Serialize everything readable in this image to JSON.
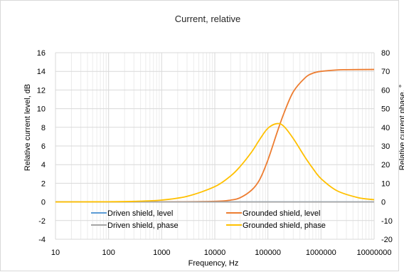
{
  "chart_data": {
    "type": "line",
    "title": "Current, relative",
    "xlabel": "Frequency, Hz",
    "ylabel": "Relative current level, dB",
    "y2label": "Relative current phase, °",
    "x_scale": "log",
    "xlim": [
      10,
      10000000
    ],
    "ylim": [
      -4,
      16
    ],
    "y2lim": [
      -20,
      80
    ],
    "x_ticks": [
      "10",
      "100",
      "1000",
      "10000",
      "100000",
      "1000000",
      "10000000"
    ],
    "y_ticks": [
      "-4",
      "-2",
      "0",
      "2",
      "4",
      "6",
      "8",
      "10",
      "12",
      "14",
      "16"
    ],
    "y2_ticks": [
      "-20",
      "-10",
      "0",
      "10",
      "20",
      "30",
      "40",
      "50",
      "60",
      "70",
      "80"
    ],
    "grid": true,
    "legend_position": "bottom-inside",
    "series": [
      {
        "name": "Driven shield, level",
        "axis": "left",
        "color": "#5b9bd5",
        "x": [
          10,
          100,
          1000,
          10000,
          100000,
          1000000,
          10000000
        ],
        "y": [
          0,
          0,
          0,
          0,
          0,
          0,
          0
        ]
      },
      {
        "name": "Grounded shield, level",
        "axis": "left",
        "color": "#ed7d31",
        "x": [
          10,
          1000,
          10000,
          20000,
          30000,
          50000,
          70000,
          100000,
          150000,
          200000,
          300000,
          500000,
          700000,
          1000000,
          2000000,
          3000000,
          10000000
        ],
        "y": [
          0,
          0,
          0.06,
          0.2,
          0.45,
          1.3,
          2.4,
          4.5,
          7.5,
          9.5,
          11.8,
          13.3,
          13.8,
          14.0,
          14.15,
          14.18,
          14.2
        ]
      },
      {
        "name": "Driven shield, phase",
        "axis": "right",
        "color": "#a5a5a5",
        "x": [
          10,
          100,
          1000,
          10000,
          100000,
          1000000,
          10000000
        ],
        "y": [
          0,
          0,
          0,
          0,
          0,
          0,
          0
        ]
      },
      {
        "name": "Grounded shield, phase",
        "axis": "right",
        "color": "#ffc000",
        "x": [
          10,
          100,
          300,
          1000,
          3000,
          10000,
          20000,
          30000,
          50000,
          70000,
          100000,
          150000,
          200000,
          300000,
          500000,
          700000,
          1000000,
          2000000,
          5000000,
          10000000
        ],
        "y": [
          0,
          0.1,
          0.3,
          1.0,
          3.0,
          8.2,
          14.0,
          19.0,
          27.0,
          33.5,
          39.5,
          42.0,
          40.5,
          34.0,
          24.0,
          18.0,
          12.5,
          6.0,
          2.3,
          1.2
        ]
      }
    ]
  }
}
